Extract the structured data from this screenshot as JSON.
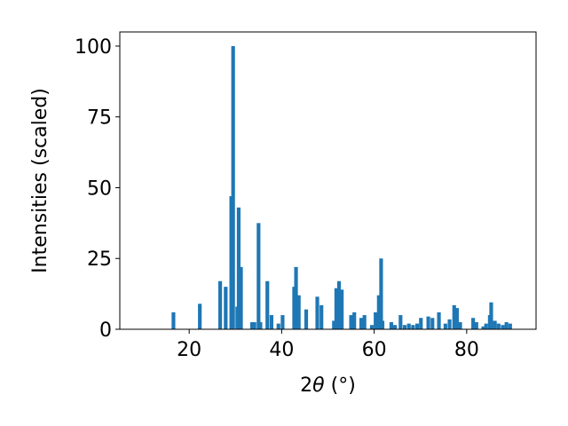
{
  "chart_data": {
    "type": "bar",
    "title": "",
    "xlabel_prefix": "2",
    "xlabel_theta": "θ",
    "xlabel_suffix": " (°)",
    "ylabel": "Intensities (scaled)",
    "xlim": [
      5,
      95
    ],
    "ylim": [
      0,
      105
    ],
    "xticks": [
      20,
      40,
      60,
      80
    ],
    "yticks": [
      0,
      25,
      50,
      75,
      100
    ],
    "bar_width": 0.8,
    "bar_color": "#1f77b4",
    "grid": false,
    "x": [
      16.6,
      22.3,
      26.7,
      27.9,
      29.1,
      29.5,
      30.4,
      30.7,
      31.2,
      33.6,
      34.1,
      35.0,
      35.4,
      36.9,
      37.8,
      39.3,
      40.2,
      42.7,
      43.1,
      43.7,
      45.3,
      47.7,
      48.6,
      51.3,
      51.8,
      52.4,
      53.0,
      55.0,
      55.7,
      57.2,
      57.9,
      59.5,
      60.3,
      61.0,
      61.5,
      61.8,
      63.7,
      64.5,
      65.7,
      66.6,
      67.5,
      68.4,
      69.3,
      70.1,
      71.7,
      72.6,
      74.0,
      75.4,
      76.3,
      77.3,
      77.9,
      78.6,
      81.4,
      82.1,
      83.6,
      84.2,
      85.0,
      85.3,
      86.1,
      86.9,
      87.8,
      88.6,
      89.4
    ],
    "values": [
      6,
      9,
      17,
      15,
      47,
      100,
      8,
      43,
      22,
      2.5,
      2.5,
      37.5,
      2.5,
      17,
      5,
      2,
      5,
      15,
      22,
      12,
      7,
      11.5,
      8.5,
      3,
      14.5,
      17,
      14,
      5,
      6,
      4,
      5,
      1.5,
      6,
      12,
      25,
      3,
      2.5,
      1.5,
      5,
      1.5,
      2,
      1.5,
      2,
      4,
      4.5,
      4,
      6,
      2,
      3.5,
      8.5,
      7.5,
      2.5,
      4,
      2.5,
      1,
      2,
      5,
      9.5,
      3,
      2,
      1.5,
      2.5,
      2
    ]
  }
}
